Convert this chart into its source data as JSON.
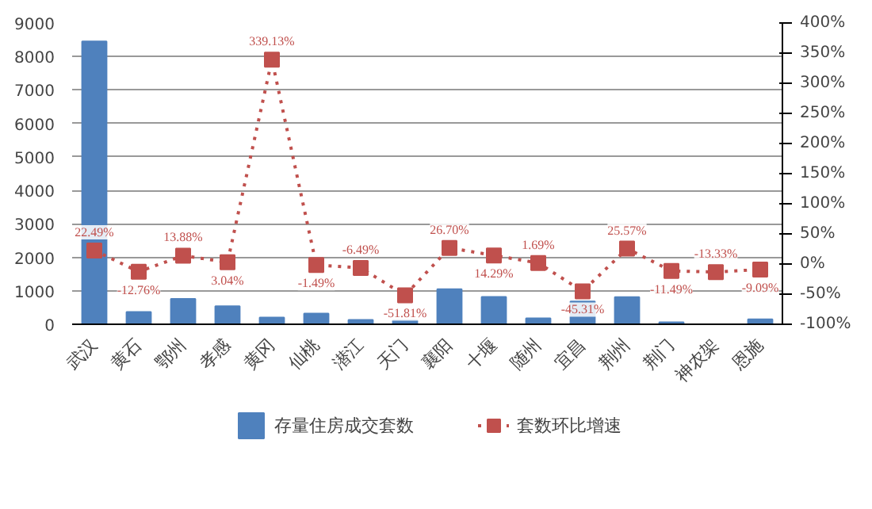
{
  "chart_data": {
    "type": "bar",
    "categories": [
      "武汉",
      "黄石",
      "鄂州",
      "孝感",
      "黄冈",
      "仙桃",
      "潜江",
      "天门",
      "襄阳",
      "十堰",
      "随州",
      "宜昌",
      "荆州",
      "荆门",
      "神农架",
      "恩施"
    ],
    "series": [
      {
        "name": "存量住房成交套数",
        "color": "#4f81bd",
        "values": [
          8450,
          370,
          760,
          540,
          200,
          320,
          130,
          120,
          1050,
          820,
          180,
          680,
          810,
          60,
          null,
          150
        ]
      },
      {
        "name": "套数环比增速",
        "type": "line",
        "axis": "y2",
        "color": "#c0504d",
        "marker": "square",
        "line_style": "dotted",
        "values": [
          22.49,
          -12.76,
          13.88,
          3.04,
          339.13,
          -1.49,
          -6.49,
          -51.81,
          26.7,
          14.29,
          1.69,
          -45.31,
          25.57,
          -11.49,
          -13.33,
          -9.09
        ],
        "value_labels": [
          "22.49%",
          "-12.76%",
          "13.88%",
          "3.04%",
          "339.13%",
          "-1.49%",
          "-6.49%",
          "-51.81%",
          "26.70%",
          "14.29%",
          "1.69%",
          "-45.31%",
          "25.57%",
          "-11.49%",
          "-13.33%",
          "-9.09%"
        ]
      }
    ],
    "ylim": [
      0,
      9000
    ],
    "yticks": [
      0,
      1000,
      2000,
      3000,
      4000,
      5000,
      6000,
      7000,
      8000,
      9000
    ],
    "y2lim": [
      -100,
      400
    ],
    "y2ticks": [
      {
        "value": -100,
        "label": "-100%"
      },
      {
        "value": -50,
        "label": "-50%"
      },
      {
        "value": 0,
        "label": "0%"
      },
      {
        "value": 50,
        "label": "50%"
      },
      {
        "value": 100,
        "label": "100%"
      },
      {
        "value": 150,
        "label": "150%"
      },
      {
        "value": 200,
        "label": "200%"
      },
      {
        "value": 250,
        "label": "250%"
      },
      {
        "value": 300,
        "label": "300%"
      },
      {
        "value": 350,
        "label": "350%"
      },
      {
        "value": 400,
        "label": "400%"
      }
    ],
    "grid": "y",
    "legend": "bottom"
  }
}
